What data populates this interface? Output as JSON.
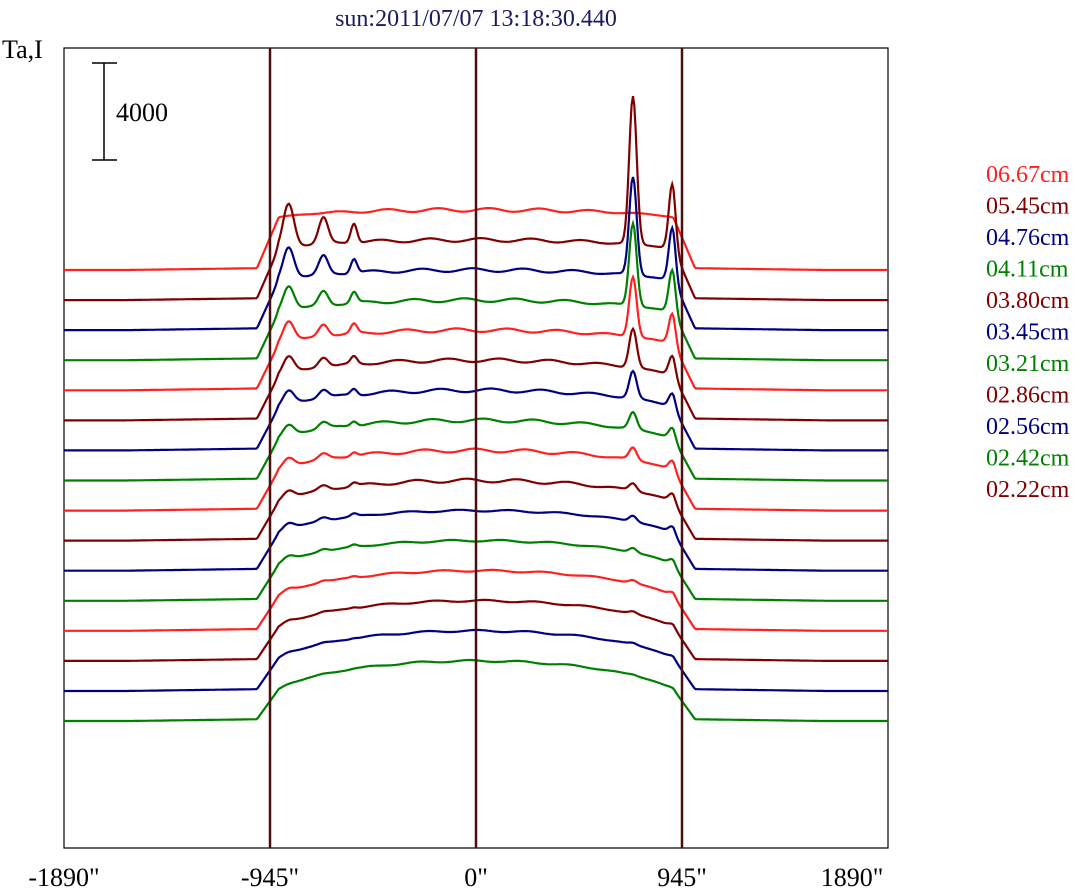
{
  "chart_data": {
    "type": "line",
    "title": "sun:2011/07/07 13:18:30.440",
    "ylabel": "Ta,I",
    "scale_bar_label": "4000",
    "x_ticks": [
      {
        "value": -1890,
        "label": "-1890\""
      },
      {
        "value": -945,
        "label": "-945\""
      },
      {
        "value": 0,
        "label": "0\""
      },
      {
        "value": 945,
        "label": "945\""
      },
      {
        "value": 1890,
        "label": "1890\""
      }
    ],
    "xlim": [
      -1890,
      1890
    ],
    "vertical_lines_x": [
      -945,
      0,
      945
    ],
    "stack_offset": 2000,
    "line_colors": [
      "#ff2020",
      "#800000",
      "#000080",
      "#008000"
    ],
    "legend": [
      {
        "label": "06.67cm",
        "color": "#ff2020"
      },
      {
        "label": "05.45cm",
        "color": "#800000"
      },
      {
        "label": "04.76cm",
        "color": "#000080"
      },
      {
        "label": "04.11cm",
        "color": "#008000"
      },
      {
        "label": "03.80cm",
        "color": "#800000"
      },
      {
        "label": "03.45cm",
        "color": "#000080"
      },
      {
        "label": "03.21cm",
        "color": "#008000"
      },
      {
        "label": "02.86cm",
        "color": "#800000"
      },
      {
        "label": "02.56cm",
        "color": "#000080"
      },
      {
        "label": "02.42cm",
        "color": "#008000"
      },
      {
        "label": "02.22cm",
        "color": "#800000"
      }
    ],
    "series_count": 16,
    "series_profile": {
      "disk_level": 4000,
      "limb_peak_left": [
        0,
        2900,
        2100,
        1600,
        1350,
        1100,
        900,
        700,
        600,
        500,
        400,
        300,
        200,
        150,
        100,
        50
      ],
      "limb_peak_right": [
        0,
        4300,
        3500,
        2800,
        2000,
        1300,
        900,
        700,
        600,
        500,
        400,
        300,
        200,
        150,
        100,
        50
      ],
      "active_region_peak": [
        0,
        9800,
        6500,
        5500,
        4000,
        2600,
        1800,
        1100,
        800,
        500,
        400,
        300,
        200,
        150,
        100,
        50
      ]
    }
  }
}
